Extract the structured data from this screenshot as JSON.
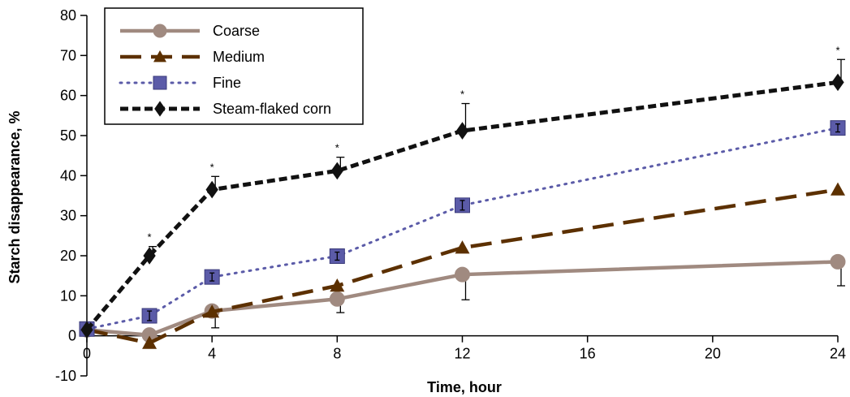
{
  "chart_data": {
    "type": "line",
    "title": "",
    "xlabel": "Time, hour",
    "ylabel": "Starch disappearance, %",
    "xlim": [
      0,
      24
    ],
    "ylim": [
      -10,
      80
    ],
    "x_ticks": [
      0,
      4,
      8,
      12,
      16,
      20,
      24
    ],
    "y_ticks": [
      -10,
      0,
      10,
      20,
      30,
      40,
      50,
      60,
      70,
      80
    ],
    "grid": false,
    "legend": "top-left",
    "series": [
      {
        "name": "Coarse",
        "marker": "circle",
        "line_style": "solid",
        "color": "#A08A80",
        "x": [
          0,
          2,
          4,
          8,
          12,
          24
        ],
        "y": [
          1.5,
          0.2,
          6.2,
          9.2,
          15.3,
          18.5
        ],
        "error": [
          null,
          null,
          4.2,
          3.4,
          6.3,
          6.0
        ]
      },
      {
        "name": "Medium",
        "marker": "triangle",
        "line_style": "long-dash",
        "color": "#5C3000",
        "x": [
          0,
          2,
          4,
          8,
          12,
          24
        ],
        "y": [
          1.5,
          -1.8,
          6.0,
          12.5,
          22.0,
          36.5
        ],
        "error": [
          null,
          null,
          null,
          null,
          null,
          null
        ]
      },
      {
        "name": "Fine",
        "marker": "square",
        "line_style": "dotted",
        "color": "#5B5BA8",
        "x": [
          0,
          2,
          4,
          8,
          12,
          24
        ],
        "y": [
          1.7,
          5.0,
          14.7,
          19.9,
          32.6,
          51.9
        ],
        "error": [
          null,
          1.2,
          1.0,
          1.0,
          1.2,
          1.0
        ]
      },
      {
        "name": "Steam-flaked corn",
        "marker": "diamond",
        "line_style": "dashed",
        "color": "#111111",
        "x": [
          0,
          2,
          4,
          8,
          12,
          24
        ],
        "y": [
          1.5,
          20.0,
          36.5,
          41.2,
          51.2,
          63.3
        ],
        "error": [
          null,
          2.3,
          3.3,
          3.4,
          6.8,
          5.7
        ]
      }
    ],
    "annotations": [
      {
        "text": "*",
        "x": 2
      },
      {
        "text": "*",
        "x": 4
      },
      {
        "text": "*",
        "x": 8
      },
      {
        "text": "*",
        "x": 12
      },
      {
        "text": "*",
        "x": 24
      }
    ]
  }
}
